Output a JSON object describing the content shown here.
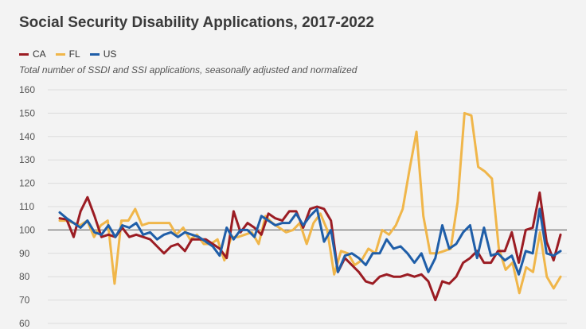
{
  "chart_data": {
    "type": "line",
    "title": "Social Security Disability Applications, 2017-2022",
    "subtitle": "Total number of SSDI and SSI applications, seasonally adjusted and normalized",
    "xlabel": "",
    "ylabel": "",
    "ylim": [
      60,
      160
    ],
    "yticks": [
      60,
      70,
      80,
      90,
      100,
      110,
      120,
      130,
      140,
      150,
      160
    ],
    "grid": true,
    "reference_line": 100,
    "legend_position": "top-left",
    "series": [
      {
        "name": "CA",
        "color": "#9b1c23",
        "values": [
          105,
          104.5,
          97,
          108,
          114,
          106,
          97,
          98,
          97,
          101,
          97,
          98,
          97,
          96,
          93,
          90,
          93,
          94,
          91,
          96,
          96,
          96,
          94,
          92,
          88,
          108,
          99,
          103,
          101,
          98,
          107,
          105,
          104,
          108,
          108,
          101,
          109,
          110,
          109,
          104,
          82,
          88,
          85,
          82,
          78,
          77,
          80,
          81,
          80,
          80,
          81,
          80,
          81,
          78,
          70,
          78,
          77,
          80,
          86,
          88,
          91,
          86,
          86,
          91,
          91,
          99,
          86,
          100,
          101,
          116,
          95,
          87,
          98
        ]
      },
      {
        "name": "FL",
        "color": "#f0b64a",
        "values": [
          104,
          104,
          103,
          102,
          104,
          97,
          102,
          104,
          77,
          104,
          104,
          109,
          102,
          103,
          103,
          103,
          103,
          98,
          101,
          96,
          98,
          94,
          94,
          96,
          87,
          97,
          97,
          98,
          99,
          94,
          106,
          103,
          101,
          99,
          100,
          103,
          94,
          103,
          107,
          100,
          81,
          91,
          90,
          85,
          87,
          92,
          90,
          100,
          98,
          102,
          109,
          126,
          142,
          106,
          90,
          90,
          91,
          92,
          112,
          150,
          149,
          127,
          125,
          122,
          92,
          83,
          86,
          73,
          84,
          82,
          99,
          80,
          75,
          80
        ]
      },
      {
        "name": "US",
        "color": "#1f5ea8",
        "values": [
          107.5,
          105,
          103,
          101,
          104,
          99,
          98,
          102,
          97,
          102,
          101,
          103,
          98,
          99,
          96,
          98,
          99,
          97,
          99,
          98,
          97,
          95,
          93,
          89,
          101,
          96,
          100,
          100,
          97,
          106,
          104,
          102,
          103,
          103,
          107,
          102,
          106,
          109,
          95,
          100,
          82,
          89,
          90,
          88,
          85,
          90,
          90,
          96,
          92,
          93,
          90,
          86,
          90,
          82,
          88,
          102,
          92,
          94,
          99,
          102,
          88,
          101,
          89,
          90,
          87,
          89,
          81,
          91,
          90,
          109,
          90,
          89,
          91
        ]
      }
    ]
  }
}
